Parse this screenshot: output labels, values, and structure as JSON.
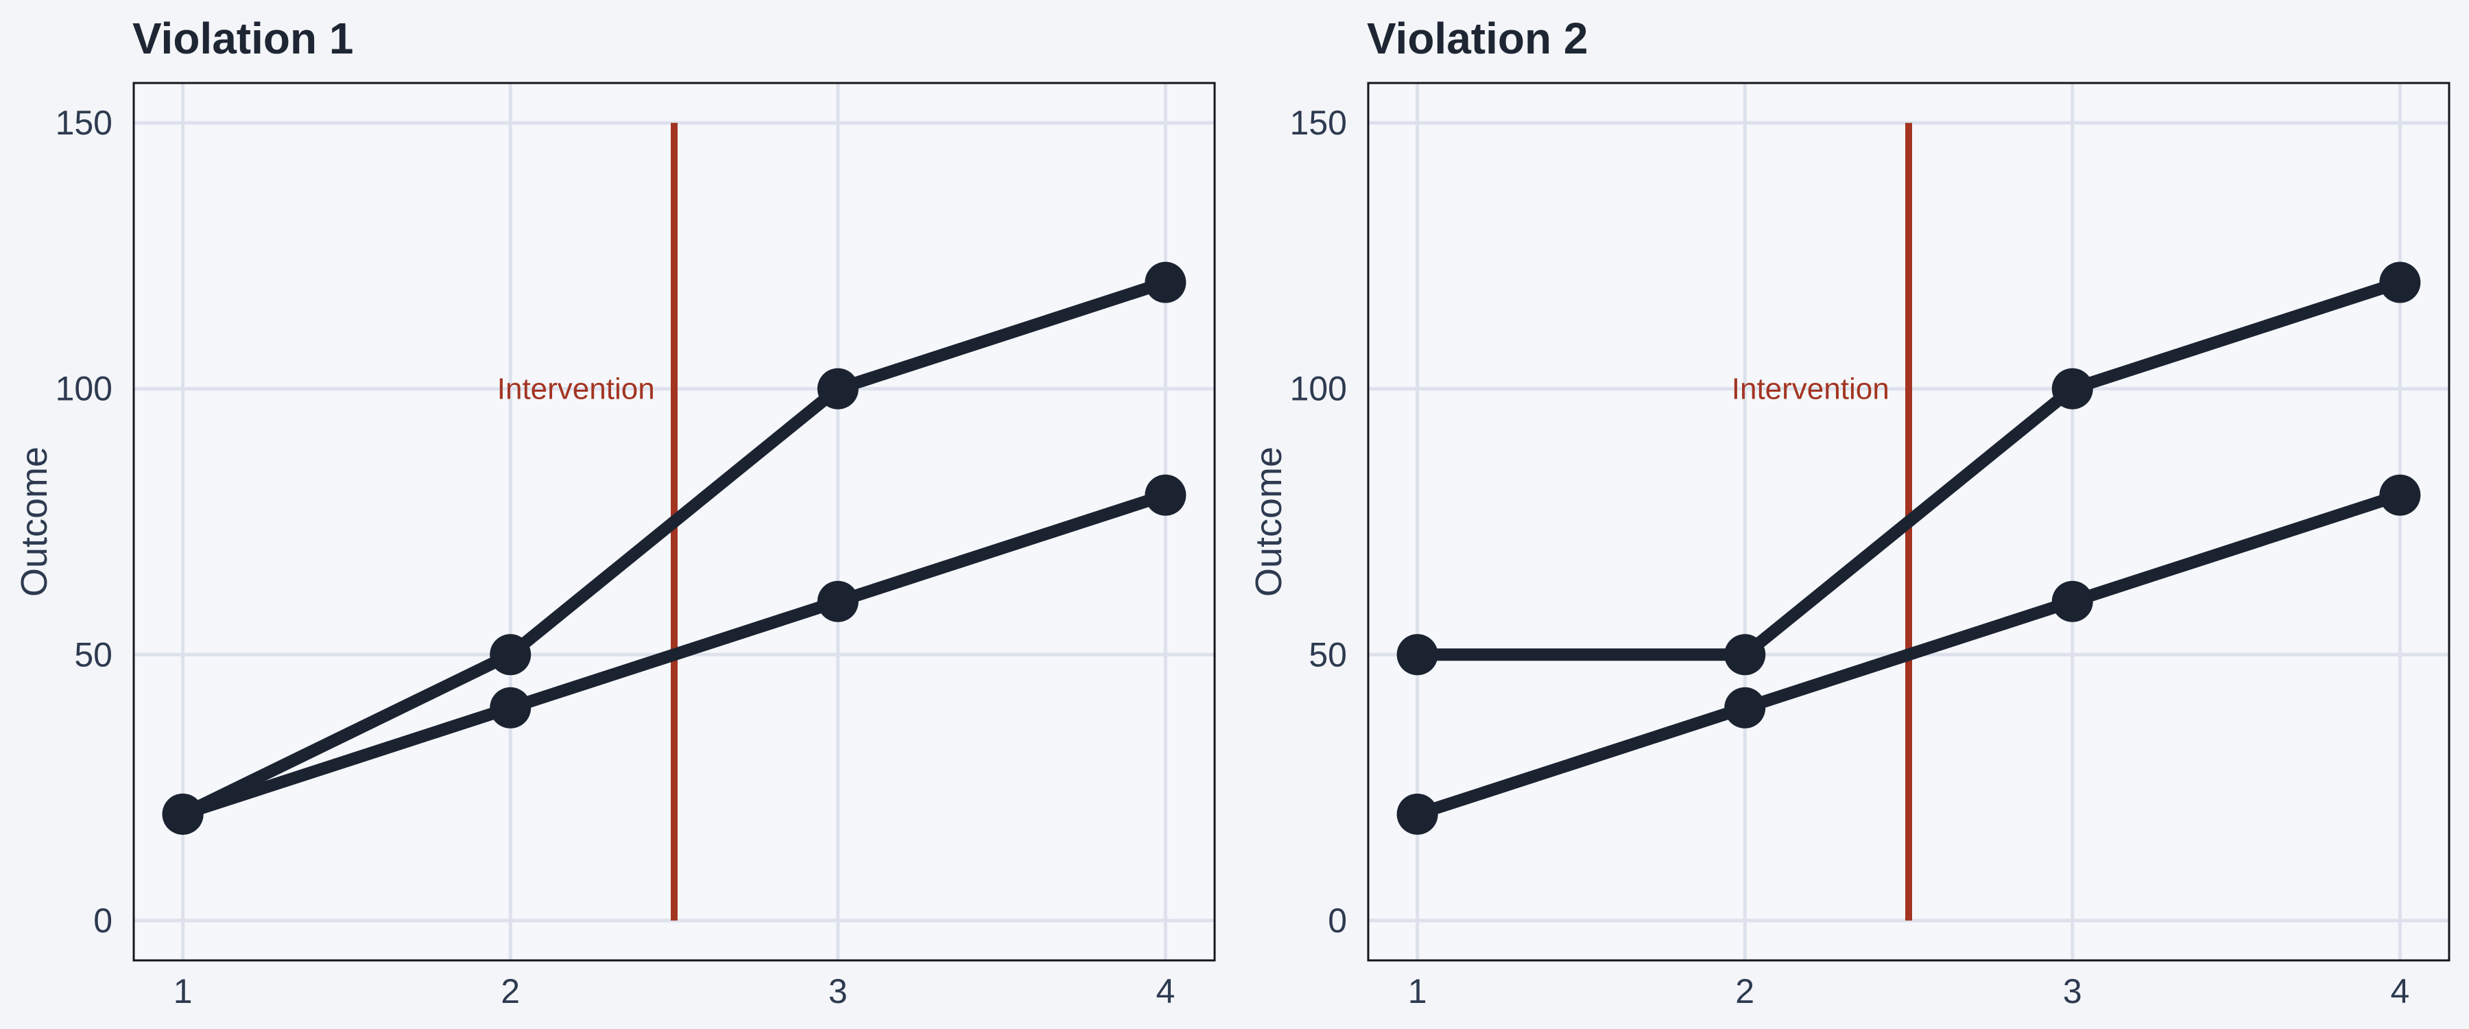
{
  "figure": {
    "description": "Two-panel line chart figure",
    "background": "#f3f5f8"
  },
  "colors": {
    "series": "#1b2331",
    "accent_red": "#a33422",
    "grid": "#dce1ec",
    "panel_background": "#f5f7fa",
    "panel_border": "#14171e",
    "tick_text": "#2e3a50",
    "title_text": "#1e2634"
  },
  "chart_data": [
    {
      "type": "line",
      "title": "Violation 1",
      "xlabel": "",
      "ylabel": "Outcome",
      "x_ticks": [
        1,
        2,
        3,
        4
      ],
      "y_ticks": [
        0,
        50,
        100,
        150
      ],
      "xlim": [
        0.85,
        4.15
      ],
      "ylim": [
        -7.5,
        157.5
      ],
      "grid": true,
      "legend": "none",
      "x": [
        1,
        2,
        3,
        4
      ],
      "series": [
        {
          "name": "series_1",
          "values": [
            20,
            50,
            100,
            120
          ]
        },
        {
          "name": "series_2",
          "values": [
            20,
            40,
            60,
            80
          ]
        }
      ],
      "vline": {
        "x": 2.5,
        "y_from": 0,
        "y_to": 150,
        "label": "Intervention",
        "label_x": 2.2,
        "label_y": 100
      }
    },
    {
      "type": "line",
      "title": "Violation 2",
      "xlabel": "",
      "ylabel": "Outcome",
      "x_ticks": [
        1,
        2,
        3,
        4
      ],
      "y_ticks": [
        0,
        50,
        100,
        150
      ],
      "xlim": [
        0.85,
        4.15
      ],
      "ylim": [
        -7.5,
        157.5
      ],
      "grid": true,
      "legend": "none",
      "x": [
        1,
        2,
        3,
        4
      ],
      "series": [
        {
          "name": "series_1",
          "values": [
            50,
            50,
            100,
            120
          ]
        },
        {
          "name": "series_2",
          "values": [
            20,
            40,
            60,
            80
          ]
        }
      ],
      "vline": {
        "x": 2.5,
        "y_from": 0,
        "y_to": 150,
        "label": "Intervention",
        "label_x": 2.2,
        "label_y": 100
      }
    }
  ]
}
